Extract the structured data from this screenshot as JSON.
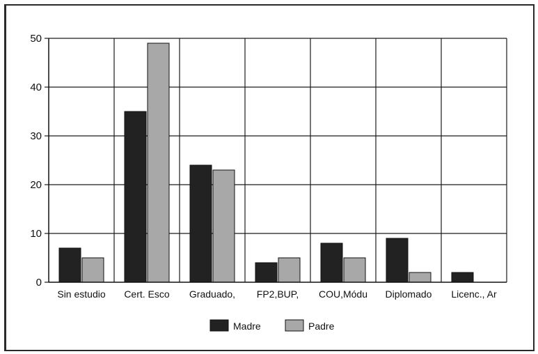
{
  "chart_data": {
    "type": "bar",
    "title": "",
    "xlabel": "",
    "ylabel": "",
    "categories": [
      "Sin estudio",
      "Cert.  Esco",
      "Graduado,",
      "FP2,BUP,",
      "COU,Módu",
      "Diplomado",
      "Licenc.,  Ar"
    ],
    "series": [
      {
        "name": "Madre",
        "values": [
          7,
          35,
          24,
          4,
          8,
          9,
          2
        ],
        "color": "#222222"
      },
      {
        "name": "Padre",
        "values": [
          5,
          49,
          23,
          5,
          5,
          2,
          0
        ],
        "color": "#a8a8a8"
      }
    ],
    "ylim": [
      0,
      50
    ],
    "yticks": [
      0,
      10,
      20,
      30,
      40,
      50
    ],
    "grid": true,
    "legend_position": "bottom"
  }
}
